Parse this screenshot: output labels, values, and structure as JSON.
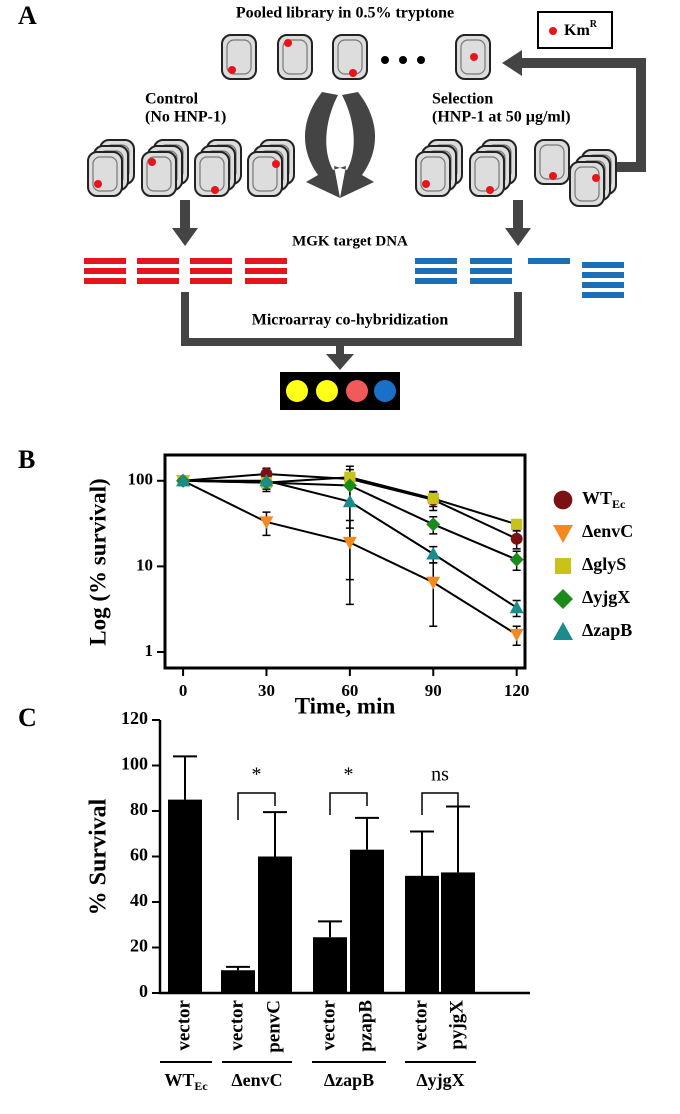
{
  "panel_a": {
    "label": "A",
    "title": "Pooled library in 0.5% tryptone",
    "legend_main": "Km",
    "legend_sup": "R",
    "control": "Control",
    "control_condition": "(No HNP-1)",
    "selection": "Selection",
    "selection_condition": "(HNP-1 at 50 µg/ml)",
    "target": "MGK target DNA",
    "readout": "Microarray co-hybridization"
  },
  "chart_data": [
    {
      "type": "line",
      "panel_label": "B",
      "x_label": "Time, min",
      "y_label": "Log (% survival)",
      "log_y": true,
      "x": [
        0,
        30,
        60,
        90,
        120
      ],
      "xlim": [
        -6.5,
        123
      ],
      "xticks": [
        0,
        30,
        60,
        90,
        120
      ],
      "ylim": [
        0.65,
        200
      ],
      "yticks": [
        1,
        10,
        100
      ],
      "series": [
        {
          "name": "WT",
          "subscript": "Ec",
          "color": "#7b1113",
          "marker": "circle",
          "values": [
            100,
            120,
            105,
            60,
            21
          ],
          "errors": [
            5,
            20,
            15,
            15,
            5
          ]
        },
        {
          "name": "ΔenvC",
          "color": "#f5891e",
          "marker": "triangle-down",
          "values": [
            100,
            33,
            19,
            6.5,
            1.6
          ],
          "errors": [
            5,
            10,
            15.4,
            4.5,
            0.4
          ]
        },
        {
          "name": "ΔglyS",
          "color": "#c8c21a",
          "marker": "square",
          "values": [
            100,
            95,
            110,
            62,
            31
          ],
          "errors": [
            5,
            10,
            25,
            12,
            4
          ]
        },
        {
          "name": "ΔyjgX",
          "color": "#1a8a1a",
          "marker": "diamond",
          "values": [
            100,
            95,
            88,
            31,
            12
          ],
          "errors": [
            5,
            20,
            60,
            7,
            3
          ]
        },
        {
          "name": "ΔzapB",
          "color": "#1a8c8c",
          "marker": "triangle-up",
          "values": [
            100,
            100,
            57,
            14,
            3.3
          ],
          "errors": [
            5,
            20,
            50,
            3,
            0.7
          ]
        }
      ]
    },
    {
      "type": "bar",
      "panel_label": "C",
      "y_label": "% Survival",
      "color": "#000000",
      "categories": [
        "vector",
        "vector",
        "penvC",
        "vector",
        "pzapB",
        "vector",
        "pyjgX"
      ],
      "values": [
        85,
        10,
        60,
        24.5,
        63,
        51.5,
        53
      ],
      "errors": [
        19,
        1.5,
        19.5,
        7,
        14,
        19.5,
        29
      ],
      "ylim": [
        0,
        120
      ],
      "yticks": [
        0,
        20,
        40,
        60,
        80,
        100,
        120
      ],
      "groups": [
        {
          "label": "WT",
          "subscript": "Ec"
        },
        {
          "label": "ΔenvC"
        },
        {
          "label": "ΔzapB"
        },
        {
          "label": "ΔyjgX"
        }
      ],
      "annotations": [
        {
          "label": "*"
        },
        {
          "label": "*"
        },
        {
          "label": "ns"
        }
      ]
    }
  ]
}
